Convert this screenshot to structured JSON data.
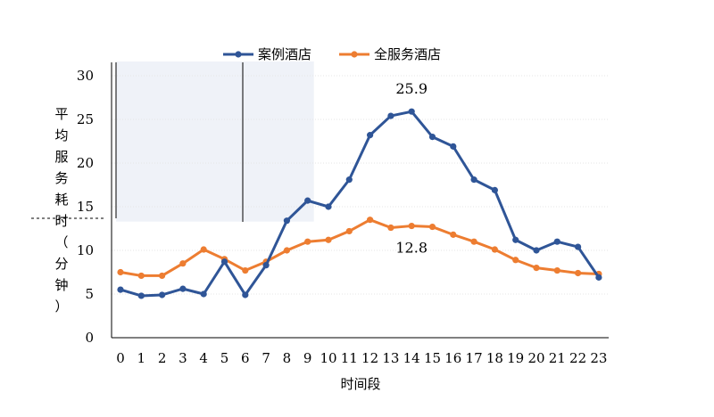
{
  "chart_data": {
    "type": "line",
    "title": "",
    "xlabel": "时间段",
    "ylabel": "平均服务耗时（分钟）",
    "x": [
      0,
      1,
      2,
      3,
      4,
      5,
      6,
      7,
      8,
      9,
      10,
      11,
      12,
      13,
      14,
      15,
      16,
      17,
      18,
      19,
      20,
      21,
      22,
      23
    ],
    "ylim": [
      0,
      30
    ],
    "yticks": [
      0,
      5,
      10,
      15,
      20,
      25,
      30
    ],
    "grid": true,
    "legend_position": "top",
    "series": [
      {
        "name": "案例酒店",
        "color": "#2F5597",
        "values": [
          5.5,
          4.8,
          4.9,
          5.6,
          5.0,
          8.7,
          4.9,
          8.3,
          13.4,
          15.7,
          15.0,
          18.1,
          23.2,
          25.4,
          25.9,
          23.0,
          21.9,
          18.1,
          16.9,
          11.2,
          10.0,
          11.0,
          10.4,
          6.9
        ]
      },
      {
        "name": "全服务酒店",
        "color": "#ED7D31",
        "values": [
          7.5,
          7.1,
          7.1,
          8.5,
          10.1,
          9.0,
          7.7,
          8.7,
          10.0,
          11.0,
          11.2,
          12.2,
          13.5,
          12.6,
          12.8,
          12.7,
          11.8,
          11.0,
          10.1,
          8.9,
          8.0,
          7.7,
          7.4,
          7.3
        ]
      }
    ],
    "annotations": [
      {
        "text": "25.9",
        "series": 0,
        "x": 14
      },
      {
        "text": "12.8",
        "series": 1,
        "x": 14
      }
    ],
    "shaded_range": {
      "x_from": 0,
      "x_to": 9,
      "y_from": 13.3,
      "y_to": 30,
      "color": "#EFF2F8"
    }
  }
}
